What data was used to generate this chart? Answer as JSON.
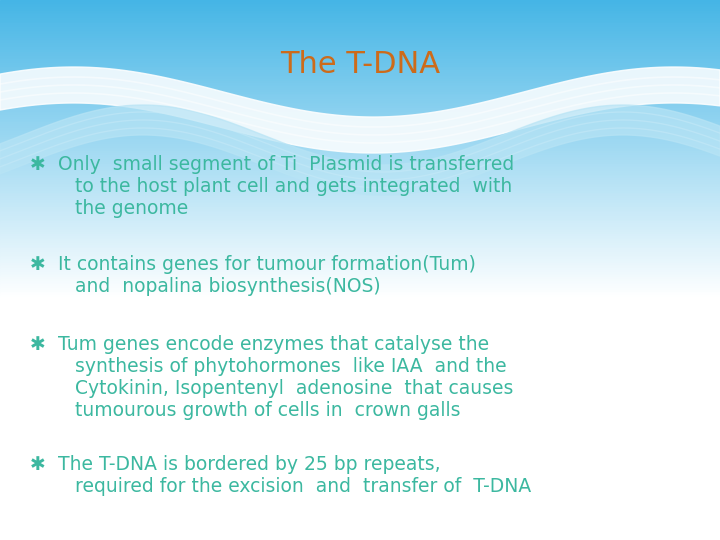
{
  "title": "The T-DNA",
  "title_color": "#CD6B1A",
  "title_fontsize": 22,
  "text_color": "#3CB8A0",
  "text_fontsize": 13.5,
  "bullet_fontsize": 13.5,
  "bullet_symbol": "✱",
  "bg_blue": [
    0.27,
    0.71,
    0.9
  ],
  "bg_white": [
    1.0,
    1.0,
    1.0
  ],
  "wave1_color": "#FFFFFF",
  "wave2_color": "#AADFF5",
  "bullets": [
    {
      "lines": [
        "Only  small segment of Ti  Plasmid is transferred",
        "to the host plant cell and gets integrated  with",
        "the genome"
      ]
    },
    {
      "lines": [
        "It contains genes for tumour formation(Tum)",
        "and  nopalina biosynthesis(NOS)"
      ]
    },
    {
      "lines": [
        "Tum genes encode enzymes that catalyse the",
        "synthesis of phytohormones  like IAA  and the",
        "Cytokinin, Isopentenyl  adenosine  that causes",
        "tumourous growth of cells in  crown galls"
      ]
    },
    {
      "lines": [
        "The T-DNA is bordered by 25 bp repeats,",
        "required for the excision  and  transfer of  T-DNA"
      ]
    }
  ]
}
